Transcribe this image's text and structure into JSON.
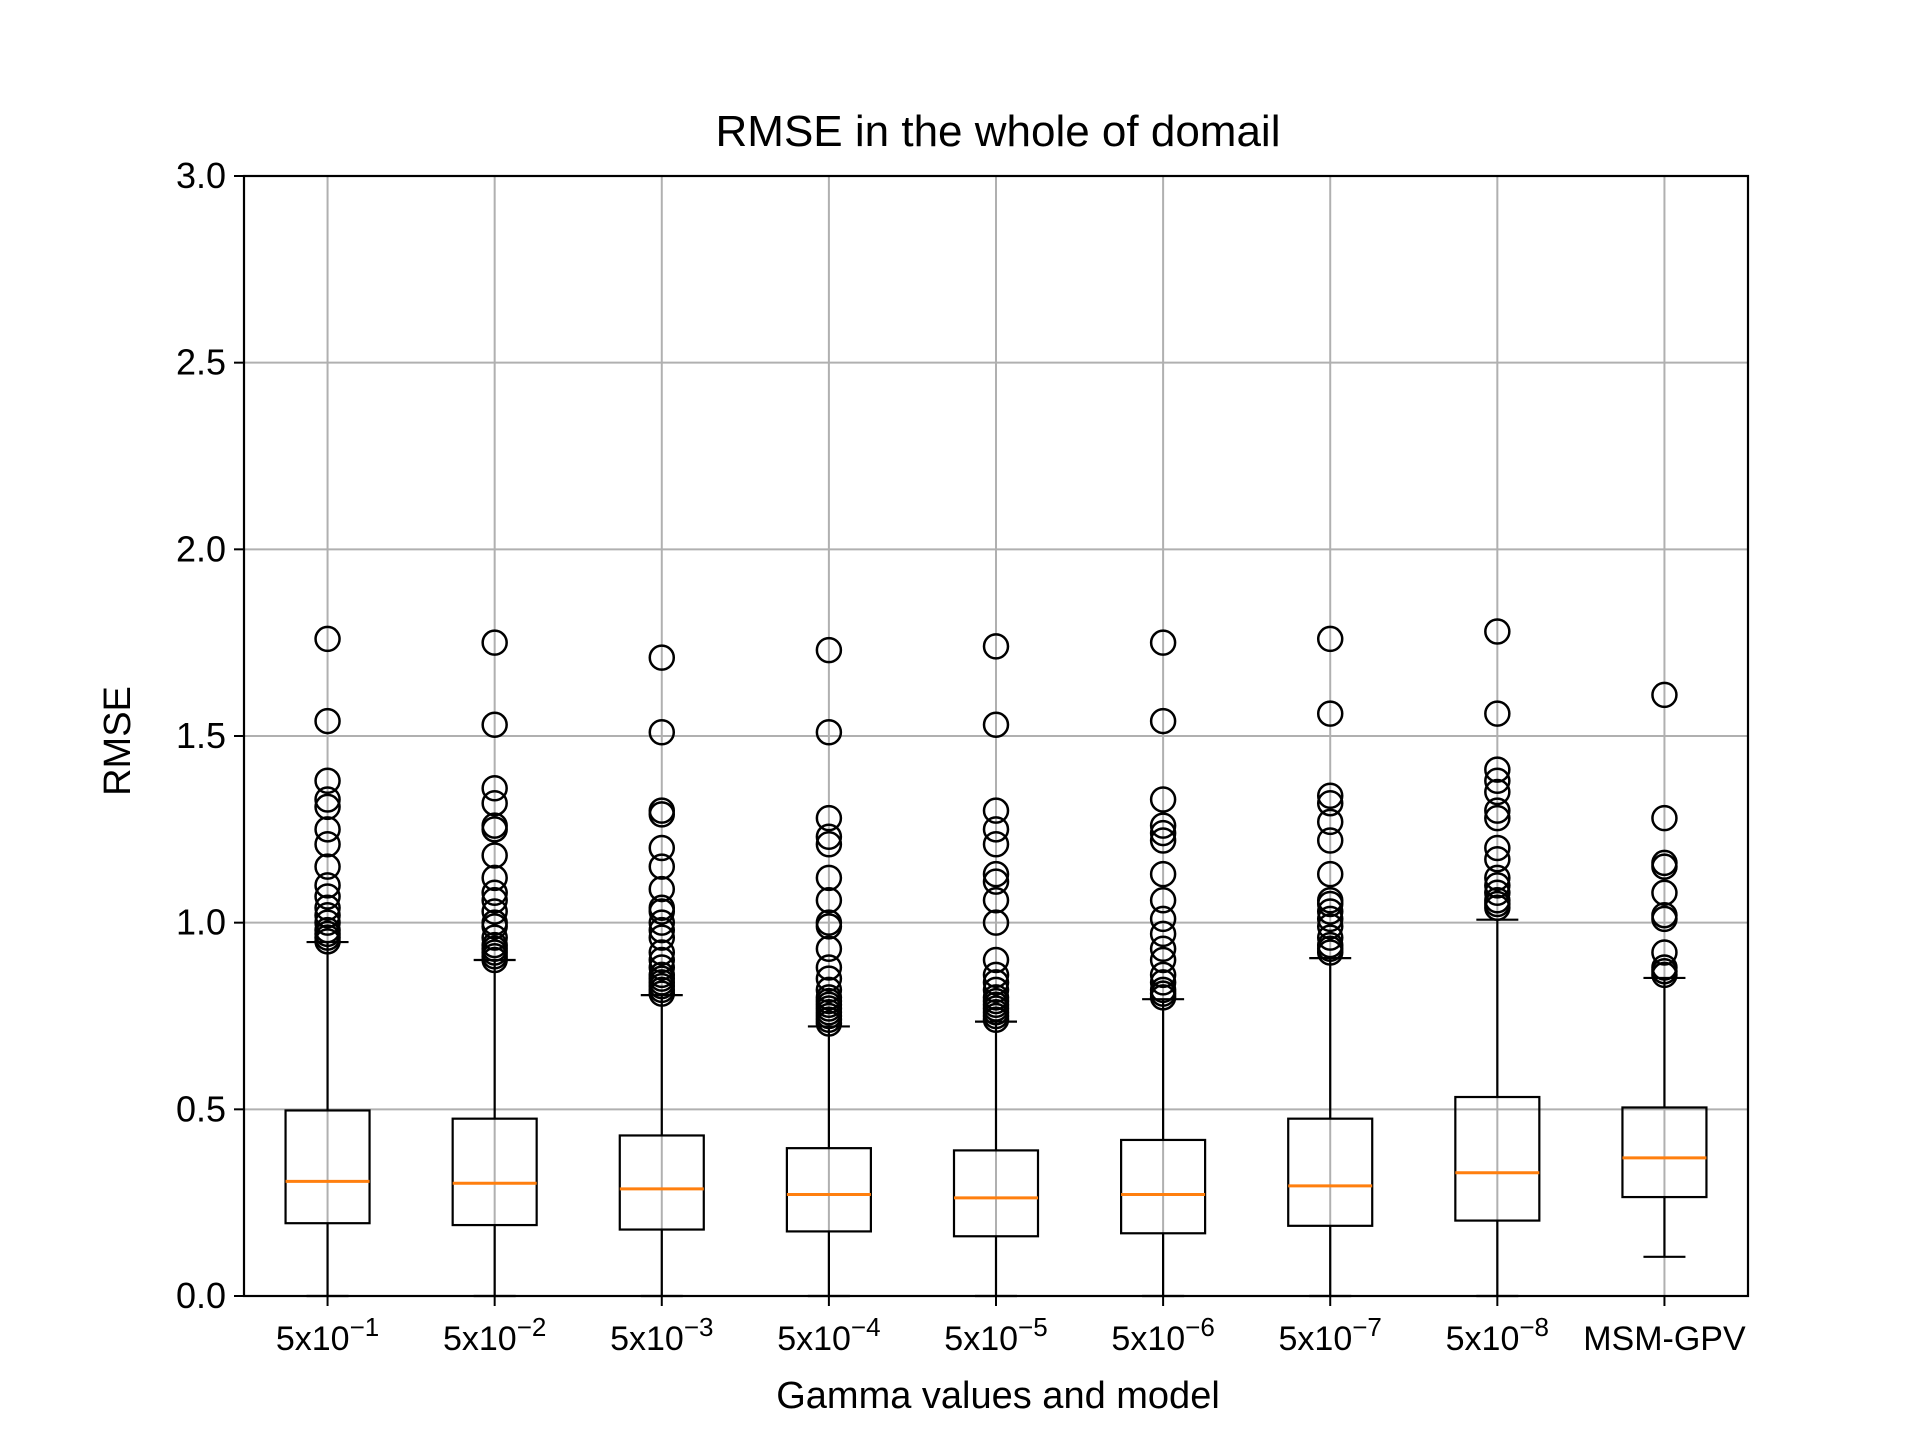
{
  "chart_data": {
    "type": "boxplot",
    "title": "RMSE in the whole of domail",
    "xlabel": "Gamma values and model",
    "ylabel": "RMSE",
    "ylim": [
      0.0,
      3.0
    ],
    "yticks": [
      "0.0",
      "0.5",
      "1.0",
      "1.5",
      "2.0",
      "2.5",
      "3.0"
    ],
    "grid": true,
    "colors": {
      "median": "#ff7f0e",
      "box": "#000000",
      "grid": "#b0b0b0"
    },
    "categories": [
      {
        "base": "5x10",
        "exp": "−1",
        "label": "5x10−1"
      },
      {
        "base": "5x10",
        "exp": "−2",
        "label": "5x10−2"
      },
      {
        "base": "5x10",
        "exp": "−3",
        "label": "5x10−3"
      },
      {
        "base": "5x10",
        "exp": "−4",
        "label": "5x10−4"
      },
      {
        "base": "5x10",
        "exp": "−5",
        "label": "5x10−5"
      },
      {
        "base": "5x10",
        "exp": "−6",
        "label": "5x10−6"
      },
      {
        "base": "5x10",
        "exp": "−7",
        "label": "5x10−7"
      },
      {
        "base": "5x10",
        "exp": "−8",
        "label": "5x10−8"
      },
      {
        "base": "MSM-GPV",
        "exp": "",
        "label": "MSM-GPV"
      }
    ],
    "boxes": [
      {
        "whisker_low": 0.0,
        "q1": 0.195,
        "median": 0.307,
        "q3": 0.497,
        "whisker_high": 0.948,
        "outliers": [
          1.76,
          1.54,
          1.38,
          1.33,
          1.31,
          1.25,
          1.21,
          1.15,
          1.1,
          1.07,
          1.04,
          1.02,
          1.0,
          0.98,
          0.97,
          0.96,
          0.95
        ]
      },
      {
        "whisker_low": 0.0,
        "q1": 0.19,
        "median": 0.302,
        "q3": 0.475,
        "whisker_high": 0.9,
        "outliers": [
          1.75,
          1.53,
          1.36,
          1.32,
          1.26,
          1.25,
          1.18,
          1.12,
          1.08,
          1.06,
          1.03,
          1.0,
          0.99,
          0.96,
          0.94,
          0.93,
          0.92,
          0.91,
          0.9
        ]
      },
      {
        "whisker_low": 0.0,
        "q1": 0.178,
        "median": 0.287,
        "q3": 0.43,
        "whisker_high": 0.806,
        "outliers": [
          1.71,
          1.51,
          1.3,
          1.29,
          1.2,
          1.15,
          1.09,
          1.04,
          1.03,
          1.0,
          0.98,
          0.96,
          0.92,
          0.9,
          0.88,
          0.86,
          0.85,
          0.84,
          0.83,
          0.82,
          0.81
        ]
      },
      {
        "whisker_low": 0.0,
        "q1": 0.173,
        "median": 0.272,
        "q3": 0.396,
        "whisker_high": 0.722,
        "outliers": [
          1.73,
          1.51,
          1.28,
          1.23,
          1.21,
          1.12,
          1.06,
          1.0,
          0.99,
          0.93,
          0.88,
          0.85,
          0.82,
          0.8,
          0.79,
          0.78,
          0.77,
          0.76,
          0.75,
          0.74,
          0.73
        ]
      },
      {
        "whisker_low": 0.0,
        "q1": 0.16,
        "median": 0.263,
        "q3": 0.39,
        "whisker_high": 0.735,
        "outliers": [
          1.74,
          1.53,
          1.3,
          1.25,
          1.21,
          1.13,
          1.11,
          1.06,
          1.0,
          0.9,
          0.86,
          0.84,
          0.82,
          0.8,
          0.79,
          0.78,
          0.77,
          0.76,
          0.75,
          0.74
        ]
      },
      {
        "whisker_low": 0.0,
        "q1": 0.168,
        "median": 0.272,
        "q3": 0.418,
        "whisker_high": 0.795,
        "outliers": [
          1.75,
          1.54,
          1.33,
          1.26,
          1.24,
          1.22,
          1.13,
          1.06,
          1.01,
          0.97,
          0.93,
          0.9,
          0.86,
          0.84,
          0.82,
          0.81,
          0.8
        ]
      },
      {
        "whisker_low": 0.0,
        "q1": 0.188,
        "median": 0.295,
        "q3": 0.475,
        "whisker_high": 0.905,
        "outliers": [
          1.76,
          1.56,
          1.34,
          1.32,
          1.27,
          1.22,
          1.13,
          1.06,
          1.05,
          1.03,
          1.01,
          0.99,
          0.96,
          0.94,
          0.93,
          0.92
        ]
      },
      {
        "whisker_low": 0.0,
        "q1": 0.202,
        "median": 0.33,
        "q3": 0.533,
        "whisker_high": 1.008,
        "outliers": [
          1.78,
          1.56,
          1.41,
          1.38,
          1.35,
          1.3,
          1.28,
          1.2,
          1.17,
          1.12,
          1.1,
          1.08,
          1.06,
          1.05,
          1.04
        ]
      },
      {
        "whisker_low": 0.105,
        "q1": 0.265,
        "median": 0.37,
        "q3": 0.505,
        "whisker_high": 0.852,
        "outliers": [
          1.61,
          1.28,
          1.16,
          1.15,
          1.08,
          1.02,
          1.01,
          0.92,
          0.88,
          0.87,
          0.86
        ]
      }
    ]
  }
}
